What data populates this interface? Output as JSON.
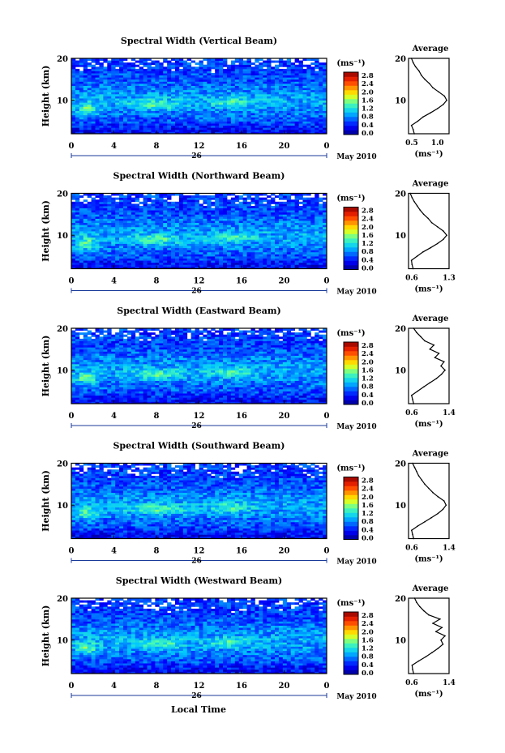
{
  "figure": {
    "ylabel": "Height (km)",
    "xlabel": "Local Time",
    "date_label": "May 2010",
    "day_label": "26",
    "colorbar_unit": "(ms⁻¹)",
    "colorbar_ticks": [
      "2.8",
      "2.4",
      "2.0",
      "1.6",
      "1.2",
      "0.8",
      "0.4",
      "0.0"
    ],
    "x_ticks": [
      "0",
      "4",
      "8",
      "12",
      "16",
      "20",
      "0"
    ],
    "y_ticks": [
      "20",
      "10"
    ],
    "avg_title": "Average",
    "avg_unit_label": "(ms⁻¹)"
  },
  "chart_data": [
    {
      "type": "heatmap",
      "title": "Spectral Width (Vertical Beam)",
      "xlabel": "Local Time",
      "ylabel": "Height (km)",
      "xlim": [
        0,
        24
      ],
      "ylim": [
        2,
        20
      ],
      "colorbar": {
        "label": "(ms⁻¹)",
        "range": [
          0.0,
          2.8
        ]
      },
      "average_profile": {
        "title": "Average",
        "xlabel": "(ms⁻¹)",
        "xticks": [
          "0.5",
          "1.0"
        ],
        "xlim": [
          0.5,
          1.2
        ],
        "height_km": [
          2,
          3,
          4,
          5,
          6,
          7,
          8,
          9,
          10,
          11,
          12,
          13,
          14,
          15,
          16,
          17,
          18,
          19,
          20
        ],
        "values": [
          0.6,
          0.58,
          0.55,
          0.66,
          0.75,
          0.88,
          1.0,
          1.1,
          1.16,
          1.12,
          1.02,
          0.92,
          0.86,
          0.78,
          0.72,
          0.68,
          0.62,
          0.58,
          0.55
        ]
      }
    },
    {
      "type": "heatmap",
      "title": "Spectral Width (Northward Beam)",
      "xlabel": "Local Time",
      "ylabel": "Height (km)",
      "xlim": [
        0,
        24
      ],
      "ylim": [
        2,
        20
      ],
      "colorbar": {
        "label": "(ms⁻¹)",
        "range": [
          0.0,
          2.8
        ]
      },
      "average_profile": {
        "title": "Average",
        "xlabel": "(ms⁻¹)",
        "xticks": [
          "0.6",
          "1.3"
        ],
        "xlim": [
          0.6,
          1.3
        ],
        "height_km": [
          2,
          3,
          4,
          5,
          6,
          7,
          8,
          9,
          10,
          11,
          12,
          13,
          14,
          15,
          16,
          17,
          18,
          19,
          20
        ],
        "values": [
          0.68,
          0.66,
          0.65,
          0.75,
          0.85,
          0.98,
          1.1,
          1.2,
          1.26,
          1.2,
          1.1,
          1.0,
          0.94,
          0.86,
          0.8,
          0.75,
          0.7,
          0.66,
          0.63
        ]
      }
    },
    {
      "type": "heatmap",
      "title": "Spectral Width (Eastward Beam)",
      "xlabel": "Local Time",
      "ylabel": "Height (km)",
      "xlim": [
        0,
        24
      ],
      "ylim": [
        2,
        20
      ],
      "colorbar": {
        "label": "(ms⁻¹)",
        "range": [
          0.0,
          2.8
        ]
      },
      "average_profile": {
        "title": "Average",
        "xlabel": "(ms⁻¹)",
        "xticks": [
          "0.6",
          "1.4"
        ],
        "xlim": [
          0.6,
          1.4
        ],
        "height_km": [
          2,
          3,
          4,
          5,
          6,
          7,
          8,
          9,
          10,
          11,
          12,
          13,
          14,
          15,
          16,
          17,
          18,
          19,
          20
        ],
        "values": [
          0.7,
          0.68,
          0.66,
          0.78,
          0.9,
          1.02,
          1.15,
          1.25,
          1.32,
          1.24,
          1.3,
          1.12,
          1.2,
          1.02,
          1.1,
          0.92,
          0.84,
          0.76,
          0.7
        ]
      }
    },
    {
      "type": "heatmap",
      "title": "Spectral Width (Southward Beam)",
      "xlabel": "Local Time",
      "ylabel": "Height (km)",
      "xlim": [
        0,
        24
      ],
      "ylim": [
        2,
        20
      ],
      "colorbar": {
        "label": "(ms⁻¹)",
        "range": [
          0.0,
          2.8
        ]
      },
      "average_profile": {
        "title": "Average",
        "xlabel": "(ms⁻¹)",
        "xticks": [
          "0.6",
          "1.4"
        ],
        "xlim": [
          0.6,
          1.4
        ],
        "height_km": [
          2,
          3,
          4,
          5,
          6,
          7,
          8,
          9,
          10,
          11,
          12,
          13,
          14,
          15,
          16,
          17,
          18,
          19,
          20
        ],
        "values": [
          0.7,
          0.68,
          0.66,
          0.78,
          0.92,
          1.05,
          1.18,
          1.28,
          1.34,
          1.3,
          1.18,
          1.08,
          1.0,
          0.92,
          0.86,
          0.8,
          0.76,
          0.72,
          0.68
        ]
      }
    },
    {
      "type": "heatmap",
      "title": "Spectral Width (Westward Beam)",
      "xlabel": "Local Time",
      "ylabel": "Height (km)",
      "xlim": [
        0,
        24
      ],
      "ylim": [
        2,
        20
      ],
      "colorbar": {
        "label": "(ms⁻¹)",
        "range": [
          0.0,
          2.8
        ]
      },
      "average_profile": {
        "title": "Average",
        "xlabel": "(ms⁻¹)",
        "xticks": [
          "0.6",
          "1.4"
        ],
        "xlim": [
          0.6,
          1.4
        ],
        "height_km": [
          2,
          3,
          4,
          5,
          6,
          7,
          8,
          9,
          10,
          11,
          12,
          13,
          14,
          15,
          16,
          17,
          18,
          19,
          20
        ],
        "values": [
          0.7,
          0.68,
          0.67,
          0.8,
          0.94,
          1.06,
          1.18,
          1.28,
          1.24,
          1.32,
          1.14,
          1.26,
          1.08,
          1.22,
          1.0,
          0.9,
          0.82,
          0.76,
          0.72
        ]
      }
    }
  ]
}
